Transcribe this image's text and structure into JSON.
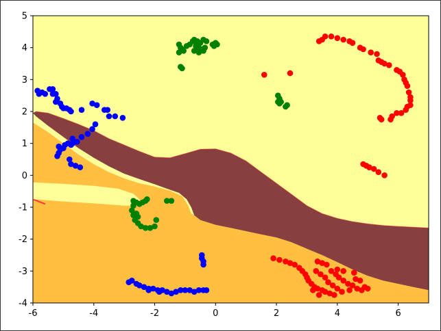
{
  "chart_data": {
    "type": "scatter",
    "title": "",
    "xlabel": "",
    "ylabel": "",
    "xlim": [
      -6,
      7
    ],
    "ylim": [
      -4,
      5
    ],
    "xticks": [
      "-6",
      "-4",
      "-2",
      "0",
      "2",
      "4",
      "6"
    ],
    "yticks": [
      "-4",
      "-3",
      "-2",
      "-1",
      "0",
      "1",
      "2",
      "3",
      "4",
      "5"
    ],
    "grid": false,
    "legend": "none",
    "background_regions": {
      "colors": {
        "light_yellow": "#ffff99",
        "orange": "#ffbf40",
        "brown": "#873f3f",
        "red_edge": "#ff3333"
      },
      "brown_band_upper": [
        [
          -5.9,
          2.0
        ],
        [
          -5.5,
          1.95
        ],
        [
          -5,
          1.78
        ],
        [
          -4.5,
          1.6
        ],
        [
          -4,
          1.4
        ],
        [
          -3.5,
          1.15
        ],
        [
          -3,
          0.95
        ],
        [
          -2.5,
          0.75
        ],
        [
          -2,
          0.57
        ],
        [
          -1.5,
          0.55
        ],
        [
          -1,
          0.68
        ],
        [
          -0.5,
          0.82
        ],
        [
          0,
          0.83
        ],
        [
          0.5,
          0.7
        ],
        [
          1,
          0.45
        ],
        [
          1.5,
          0.1
        ],
        [
          2,
          -0.25
        ],
        [
          2.5,
          -0.6
        ],
        [
          3,
          -0.95
        ],
        [
          3.5,
          -1.2
        ],
        [
          4,
          -1.35
        ],
        [
          4.5,
          -1.45
        ],
        [
          5,
          -1.52
        ],
        [
          5.5,
          -1.57
        ],
        [
          6,
          -1.6
        ],
        [
          7,
          -1.65
        ]
      ],
      "brown_band_lower": [
        [
          7,
          -3.6
        ],
        [
          6.5,
          -3.5
        ],
        [
          6,
          -3.4
        ],
        [
          5.5,
          -3.3
        ],
        [
          5,
          -3.15
        ],
        [
          4.5,
          -2.95
        ],
        [
          4,
          -2.72
        ],
        [
          3.5,
          -2.5
        ],
        [
          3,
          -2.3
        ],
        [
          2.5,
          -2.1
        ],
        [
          2,
          -1.95
        ],
        [
          1.5,
          -1.85
        ],
        [
          1,
          -1.75
        ],
        [
          0.5,
          -1.65
        ],
        [
          0,
          -1.55
        ],
        [
          -0.5,
          -1.4
        ],
        [
          -0.7,
          -1.25
        ],
        [
          -0.8,
          -1.0
        ],
        [
          -0.95,
          -0.75
        ],
        [
          -1.2,
          -0.55
        ],
        [
          -1.6,
          -0.42
        ],
        [
          -2,
          -0.28
        ],
        [
          -2.5,
          -0.12
        ],
        [
          -3,
          0.05
        ],
        [
          -3.5,
          0.28
        ],
        [
          -4,
          0.55
        ],
        [
          -4.5,
          0.85
        ],
        [
          -5,
          1.2
        ],
        [
          -5.5,
          1.55
        ],
        [
          -5.9,
          1.85
        ],
        [
          -6,
          1.95
        ]
      ],
      "orange_left_upper": [
        [
          -6,
          1.65
        ],
        [
          -5.5,
          1.35
        ],
        [
          -5,
          1.0
        ],
        [
          -4.5,
          0.65
        ],
        [
          -4,
          0.35
        ],
        [
          -3.5,
          0.1
        ],
        [
          -3,
          -0.1
        ],
        [
          -2.5,
          -0.25
        ],
        [
          -2,
          -0.35
        ],
        [
          -1.5,
          -0.48
        ],
        [
          -1.1,
          -0.65
        ],
        [
          -0.9,
          -0.95
        ],
        [
          -0.8,
          -1.2
        ],
        [
          -0.7,
          -1.35
        ]
      ],
      "yellow_pocket": [
        [
          -6,
          -0.22
        ],
        [
          -5,
          -0.27
        ],
        [
          -4,
          -0.33
        ],
        [
          -3.2,
          -0.42
        ],
        [
          -2.7,
          -0.58
        ],
        [
          -2.5,
          -0.75
        ],
        [
          -2.5,
          -0.95
        ],
        [
          -3,
          -0.95
        ],
        [
          -4,
          -0.88
        ],
        [
          -5,
          -0.82
        ],
        [
          -6,
          -0.75
        ]
      ]
    },
    "series": [
      {
        "color": "#ff0000",
        "points": [
          [
            3.4,
            4.2
          ],
          [
            3.5,
            4.25
          ],
          [
            3.6,
            4.35
          ],
          [
            3.8,
            4.35
          ],
          [
            4.0,
            4.3
          ],
          [
            4.2,
            4.25
          ],
          [
            4.4,
            4.2
          ],
          [
            4.5,
            4.15
          ],
          [
            4.75,
            4.0
          ],
          [
            4.85,
            3.95
          ],
          [
            5.1,
            3.85
          ],
          [
            5.3,
            3.8
          ],
          [
            5.35,
            3.6
          ],
          [
            5.45,
            3.55
          ],
          [
            5.55,
            3.5
          ],
          [
            5.7,
            3.45
          ],
          [
            5.95,
            3.3
          ],
          [
            6.05,
            3.25
          ],
          [
            6.15,
            3.15
          ],
          [
            6.2,
            3.0
          ],
          [
            6.25,
            2.9
          ],
          [
            6.3,
            2.8
          ],
          [
            6.35,
            2.6
          ],
          [
            6.4,
            2.45
          ],
          [
            6.4,
            2.35
          ],
          [
            6.4,
            2.2
          ],
          [
            6.3,
            2.15
          ],
          [
            6.25,
            2.05
          ],
          [
            6.1,
            1.95
          ],
          [
            5.95,
            1.95
          ],
          [
            5.8,
            1.85
          ],
          [
            5.75,
            1.75
          ],
          [
            5.4,
            1.8
          ],
          [
            5.45,
            1.75
          ],
          [
            4.85,
            0.35
          ],
          [
            4.95,
            0.3
          ],
          [
            5.05,
            0.25
          ],
          [
            5.2,
            0.2
          ],
          [
            5.35,
            0.1
          ],
          [
            5.55,
            0.0
          ],
          [
            1.6,
            3.15
          ],
          [
            2.45,
            3.2
          ],
          [
            1.9,
            -2.6
          ],
          [
            2.1,
            -2.65
          ],
          [
            2.3,
            -2.7
          ],
          [
            2.45,
            -2.75
          ],
          [
            2.6,
            -2.8
          ],
          [
            2.75,
            -2.9
          ],
          [
            2.85,
            -3.0
          ],
          [
            2.95,
            -3.1
          ],
          [
            3.0,
            -3.2
          ],
          [
            3.05,
            -3.3
          ],
          [
            3.15,
            -3.4
          ],
          [
            3.25,
            -3.5
          ],
          [
            3.35,
            -3.55
          ],
          [
            3.5,
            -3.6
          ],
          [
            3.6,
            -3.65
          ],
          [
            3.75,
            -3.7
          ],
          [
            3.9,
            -3.75
          ],
          [
            3.35,
            -2.7
          ],
          [
            3.5,
            -2.75
          ],
          [
            3.65,
            -2.8
          ],
          [
            3.8,
            -3.0
          ],
          [
            3.95,
            -3.1
          ],
          [
            4.05,
            -3.2
          ],
          [
            4.2,
            -3.3
          ],
          [
            4.35,
            -3.4
          ],
          [
            4.5,
            -3.45
          ],
          [
            4.65,
            -3.55
          ],
          [
            4.8,
            -3.6
          ],
          [
            4.9,
            -3.5
          ],
          [
            5.0,
            -3.55
          ],
          [
            4.75,
            -3.3
          ],
          [
            4.6,
            -3.25
          ],
          [
            4.0,
            -2.95
          ],
          [
            4.2,
            -3.0
          ],
          [
            3.3,
            -3.0
          ],
          [
            3.45,
            -3.1
          ],
          [
            3.6,
            -3.2
          ],
          [
            3.7,
            -3.35
          ],
          [
            3.85,
            -3.45
          ],
          [
            4.0,
            -3.55
          ],
          [
            4.15,
            -3.65
          ],
          [
            3.2,
            -3.6
          ],
          [
            3.4,
            -3.75
          ],
          [
            4.55,
            -3.05
          ],
          [
            4.4,
            -3.6
          ]
        ]
      },
      {
        "color": "#008000",
        "points": [
          [
            -1.2,
            4.1
          ],
          [
            -1.15,
            4.0
          ],
          [
            -1.1,
            3.95
          ],
          [
            -1.05,
            3.9
          ],
          [
            -1.2,
            3.85
          ],
          [
            -0.95,
            4.05
          ],
          [
            -0.85,
            4.1
          ],
          [
            -0.75,
            4.2
          ],
          [
            -0.7,
            4.25
          ],
          [
            -0.6,
            4.2
          ],
          [
            -0.5,
            4.15
          ],
          [
            -0.4,
            4.25
          ],
          [
            -0.3,
            4.2
          ],
          [
            -0.65,
            4.05
          ],
          [
            -0.55,
            4.0
          ],
          [
            -0.45,
            3.95
          ],
          [
            -0.4,
            3.9
          ],
          [
            -0.55,
            3.85
          ],
          [
            -0.7,
            3.9
          ],
          [
            -0.1,
            4.1
          ],
          [
            0.0,
            4.15
          ],
          [
            0.05,
            4.1
          ],
          [
            -0.05,
            4.05
          ],
          [
            -1.15,
            3.4
          ],
          [
            -1.1,
            3.35
          ],
          [
            -0.35,
            4.0
          ],
          [
            2.05,
            2.5
          ],
          [
            2.1,
            2.4
          ],
          [
            2.15,
            2.3
          ],
          [
            2.1,
            2.25
          ],
          [
            2.35,
            2.2
          ],
          [
            2.3,
            2.15
          ],
          [
            2.05,
            2.3
          ],
          [
            -2.7,
            -0.8
          ],
          [
            -2.6,
            -0.85
          ],
          [
            -2.7,
            -0.95
          ],
          [
            -2.75,
            -1.1
          ],
          [
            -2.7,
            -1.25
          ],
          [
            -2.65,
            -1.4
          ],
          [
            -2.55,
            -1.5
          ],
          [
            -2.45,
            -1.6
          ],
          [
            -2.3,
            -1.65
          ],
          [
            -2.15,
            -1.65
          ],
          [
            -2.0,
            -1.6
          ],
          [
            -1.95,
            -1.4
          ],
          [
            -2.5,
            -0.9
          ],
          [
            -2.4,
            -0.85
          ],
          [
            -2.3,
            -0.8
          ],
          [
            -2.25,
            -0.75
          ],
          [
            -1.6,
            -0.8
          ],
          [
            -1.45,
            -0.8
          ],
          [
            -2.55,
            -1.3
          ],
          [
            -2.6,
            -1.2
          ]
        ]
      },
      {
        "color": "#0000ff",
        "points": [
          [
            -5.85,
            2.65
          ],
          [
            -5.8,
            2.55
          ],
          [
            -5.7,
            2.6
          ],
          [
            -5.6,
            2.55
          ],
          [
            -5.45,
            2.7
          ],
          [
            -5.35,
            2.7
          ],
          [
            -5.35,
            2.55
          ],
          [
            -5.25,
            2.55
          ],
          [
            -5.2,
            2.4
          ],
          [
            -5.25,
            2.3
          ],
          [
            -5.1,
            2.25
          ],
          [
            -5.05,
            2.15
          ],
          [
            -5.0,
            2.1
          ],
          [
            -4.9,
            2.1
          ],
          [
            -4.8,
            2.05
          ],
          [
            -4.75,
            2.0
          ],
          [
            -4.4,
            2.05
          ],
          [
            -4.05,
            2.25
          ],
          [
            -3.9,
            2.2
          ],
          [
            -3.65,
            2.05
          ],
          [
            -3.55,
            2.05
          ],
          [
            -3.5,
            1.85
          ],
          [
            -3.3,
            1.85
          ],
          [
            -3.05,
            1.8
          ],
          [
            -3.95,
            1.6
          ],
          [
            -4.05,
            1.45
          ],
          [
            -4.2,
            1.3
          ],
          [
            -4.4,
            1.2
          ],
          [
            -4.55,
            1.05
          ],
          [
            -4.7,
            1.0
          ],
          [
            -4.75,
            0.95
          ],
          [
            -4.85,
            1.0
          ],
          [
            -4.95,
            0.95
          ],
          [
            -5.0,
            0.85
          ],
          [
            -5.1,
            0.8
          ],
          [
            -5.15,
            0.7
          ],
          [
            -5.2,
            0.6
          ],
          [
            -5.15,
            0.9
          ],
          [
            -4.7,
            1.15
          ],
          [
            -4.8,
            0.5
          ],
          [
            -4.75,
            0.35
          ],
          [
            -4.6,
            0.3
          ],
          [
            -4.45,
            0.25
          ],
          [
            -0.45,
            -2.5
          ],
          [
            -0.45,
            -2.6
          ],
          [
            -0.4,
            -2.7
          ],
          [
            -0.4,
            -2.8
          ],
          [
            -2.85,
            -3.35
          ],
          [
            -2.75,
            -3.3
          ],
          [
            -2.6,
            -3.4
          ],
          [
            -2.5,
            -3.45
          ],
          [
            -2.35,
            -3.5
          ],
          [
            -2.2,
            -3.55
          ],
          [
            -2.05,
            -3.55
          ],
          [
            -1.9,
            -3.6
          ],
          [
            -1.75,
            -3.6
          ],
          [
            -1.6,
            -3.65
          ],
          [
            -1.45,
            -3.7
          ],
          [
            -1.3,
            -3.65
          ],
          [
            -1.15,
            -3.6
          ],
          [
            -1.0,
            -3.6
          ],
          [
            -0.85,
            -3.6
          ],
          [
            -0.7,
            -3.65
          ],
          [
            -0.55,
            -3.6
          ],
          [
            -0.4,
            -3.6
          ],
          [
            -0.3,
            -3.6
          ],
          [
            -2.2,
            -3.6
          ],
          [
            -1.85,
            -3.65
          ]
        ]
      }
    ]
  }
}
